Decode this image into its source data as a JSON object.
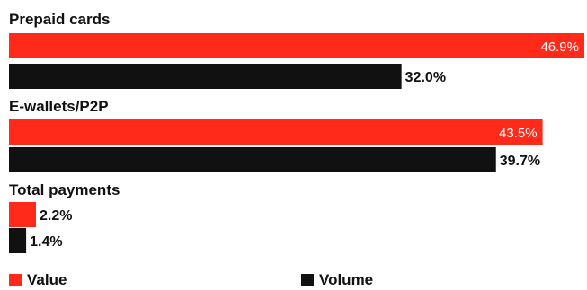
{
  "chart_data": {
    "type": "bar",
    "orientation": "horizontal",
    "categories": [
      "Prepaid cards",
      "E-wallets/P2P",
      "Total payments"
    ],
    "series": [
      {
        "name": "Value",
        "color": "#ff2a1a",
        "values": [
          46.9,
          43.5,
          2.2
        ],
        "labels": [
          "46.9%",
          "43.5%",
          "2.2%"
        ]
      },
      {
        "name": "Volume",
        "color": "#111111",
        "values": [
          32.0,
          39.7,
          1.4
        ],
        "labels": [
          "32.0%",
          "39.7%",
          "1.4%"
        ]
      }
    ],
    "xlim": [
      0,
      46.9
    ],
    "grid": false,
    "legend_position": "bottom"
  }
}
